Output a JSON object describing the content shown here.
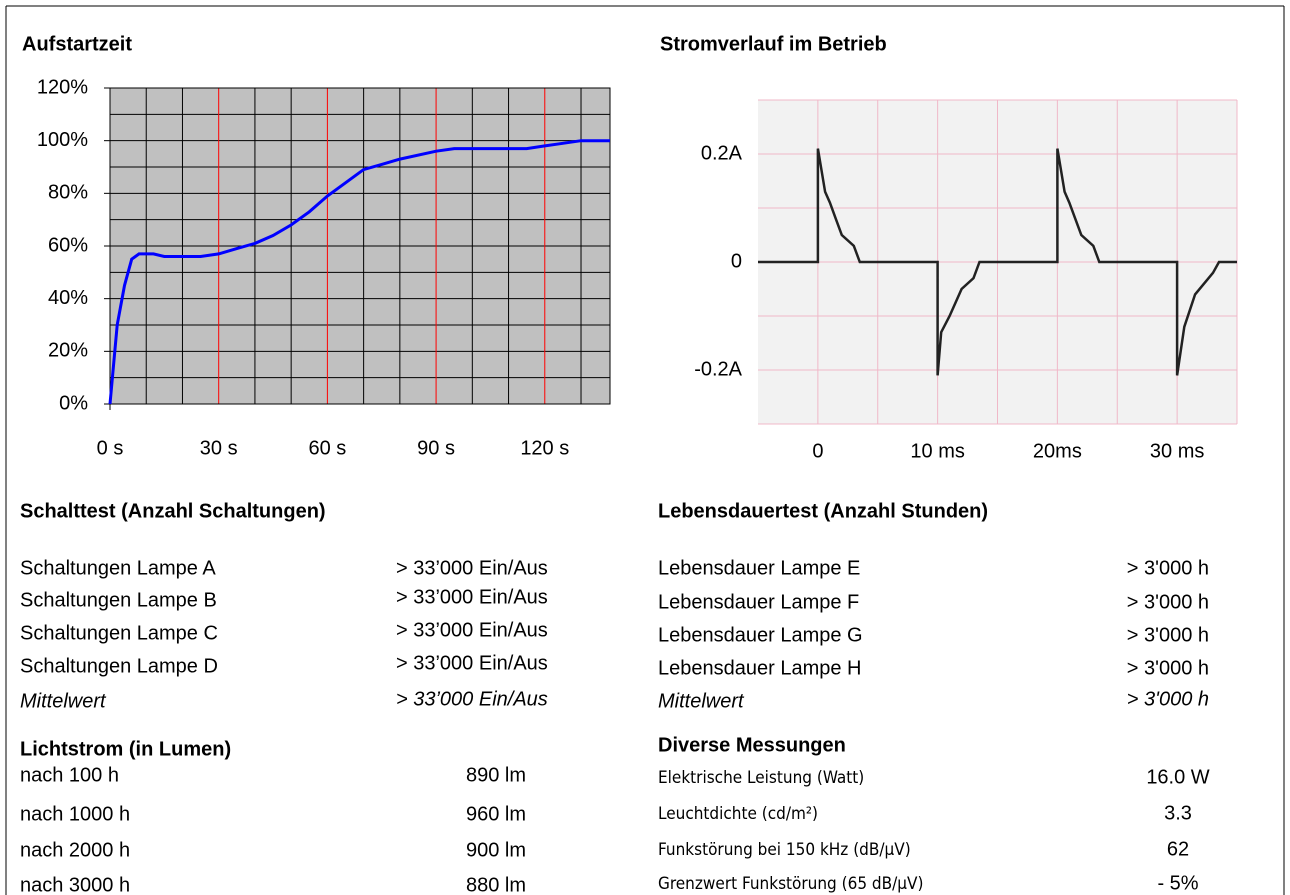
{
  "chart_data": [
    {
      "type": "line",
      "title": "Aufstartzeit",
      "x": [
        0,
        2,
        4,
        6,
        7,
        8,
        9,
        10,
        12,
        15,
        20,
        25,
        30,
        35,
        40,
        45,
        50,
        55,
        60,
        65,
        70,
        75,
        80,
        90,
        95,
        100,
        110,
        115,
        120,
        125,
        130,
        138
      ],
      "series": [
        {
          "color": "#0000ff",
          "values": [
            0,
            30,
            45,
            55,
            56,
            57,
            57,
            57,
            57,
            56,
            56,
            56,
            57,
            59,
            61,
            64,
            68,
            73,
            79,
            84,
            89,
            91,
            93,
            96,
            97,
            97,
            97,
            97,
            98,
            99,
            100,
            100
          ]
        }
      ],
      "xlim": [
        0,
        138
      ],
      "ylim": [
        0,
        120
      ],
      "xticks": [
        {
          "value": 0,
          "label": "0 s"
        },
        {
          "value": 30,
          "label": "30 s"
        },
        {
          "value": 60,
          "label": "60 s"
        },
        {
          "value": 90,
          "label": "90 s"
        },
        {
          "value": 120,
          "label": "120 s"
        }
      ],
      "yticks": [
        {
          "value": 0,
          "label": "0%"
        },
        {
          "value": 20,
          "label": "20%"
        },
        {
          "value": 40,
          "label": "40%"
        },
        {
          "value": 60,
          "label": "60%"
        },
        {
          "value": 80,
          "label": "80%"
        },
        {
          "value": 100,
          "label": "100%"
        },
        {
          "value": 120,
          "label": "120%"
        }
      ],
      "grid": true
    },
    {
      "type": "line",
      "title": "Stromverlauf im Betrieb",
      "x": [
        -5,
        0,
        0,
        0.6,
        1,
        1.5,
        2,
        3,
        3.5,
        10,
        10,
        10.3,
        11,
        12,
        13,
        13.5,
        20,
        20,
        20.6,
        21,
        21.5,
        22,
        23,
        23.5,
        30,
        30,
        30.6,
        31.5,
        33,
        33.5,
        35
      ],
      "series": [
        {
          "color": "#222222",
          "values": [
            0,
            0,
            0.21,
            0.13,
            0.11,
            0.08,
            0.05,
            0.03,
            0,
            0,
            -0.21,
            -0.13,
            -0.1,
            -0.05,
            -0.03,
            0,
            0,
            0.21,
            0.13,
            0.11,
            0.08,
            0.05,
            0.03,
            0,
            0,
            -0.21,
            -0.12,
            -0.06,
            -0.02,
            0,
            0
          ]
        }
      ],
      "xlim": [
        -5,
        35
      ],
      "ylim": [
        -0.3,
        0.3
      ],
      "xticks": [
        0,
        {
          "value": 10,
          "label": "10 ms"
        },
        {
          "value": 20,
          "label": "20ms"
        },
        {
          "value": 30,
          "label": "30 ms"
        }
      ],
      "yticks": [
        {
          "value": -0.2,
          "label": "-0.2A"
        },
        0,
        {
          "value": 0.2,
          "label": "0.2A"
        }
      ],
      "grid": true
    }
  ],
  "sections": {
    "switching": {
      "title": "Schalttest (Anzahl Schaltungen)",
      "rows": [
        [
          "Schaltungen Lampe A",
          "> 33’000 Ein/Aus"
        ],
        [
          "Schaltungen Lampe B",
          "> 33’000 Ein/Aus"
        ],
        [
          "Schaltungen Lampe C",
          "> 33’000 Ein/Aus"
        ],
        [
          "Schaltungen Lampe D",
          "> 33’000 Ein/Aus"
        ]
      ],
      "mean": [
        "Mittelwert",
        "> 33’000 Ein/Aus"
      ]
    },
    "lifetime": {
      "title": "Lebensdauertest (Anzahl Stunden)",
      "rows": [
        [
          "Lebensdauer Lampe E",
          "> 3'000 h"
        ],
        [
          "Lebensdauer Lampe F",
          "> 3'000 h"
        ],
        [
          "Lebensdauer Lampe G",
          "> 3'000 h"
        ],
        [
          "Lebensdauer Lampe H",
          "> 3'000 h"
        ]
      ],
      "mean": [
        "Mittelwert",
        "> 3'000 h"
      ]
    },
    "flux": {
      "title": "Lichtstrom (in Lumen)",
      "rows": [
        [
          "nach 100 h",
          "890 lm"
        ],
        [
          "nach 1000 h",
          "960 lm"
        ],
        [
          "nach 2000 h",
          "900 lm"
        ],
        [
          "nach 3000 h",
          "880 lm"
        ]
      ]
    },
    "misc": {
      "title": "Diverse Messungen",
      "rows": [
        [
          "Elektrische Leistung (Watt)",
          "16.0 W"
        ],
        [
          "Leuchtdichte (cd/m²)",
          "3.3"
        ],
        [
          "Funkstörung bei 150 kHz (dB/µV)",
          "62"
        ],
        [
          "Grenzwert Funkstörung (65 dB/µV)",
          "- 5%"
        ]
      ]
    }
  }
}
